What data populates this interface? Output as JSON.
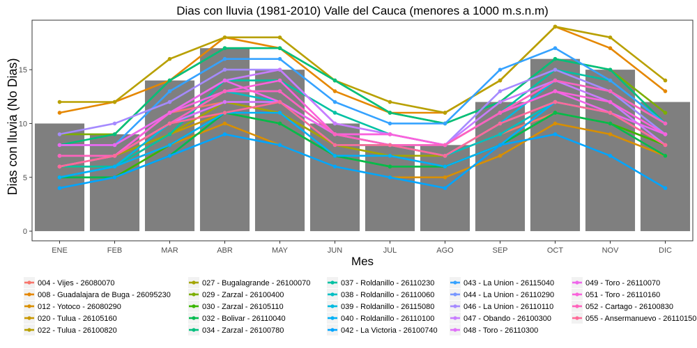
{
  "chart_data": {
    "type": "bar",
    "title": "Dias con lluvia (1981-2010) Valle del Cauca (menores a 1000 m.s.n.m)",
    "xlabel": "Mes",
    "ylabel": "Dias con lluvia (No Dias)",
    "categories": [
      "ENE",
      "FEB",
      "MAR",
      "ABR",
      "MAY",
      "JUN",
      "JUL",
      "AGO",
      "SEP",
      "OCT",
      "NOV",
      "DIC"
    ],
    "ylim": [
      -0.9,
      19.6
    ],
    "yticks": [
      0,
      5,
      10,
      15
    ],
    "grid": false,
    "bars": {
      "color": "#7f7f7f",
      "values": [
        10,
        9,
        14,
        17,
        15,
        10,
        8,
        8,
        12,
        16,
        15,
        12
      ]
    },
    "legend_position": "bottom",
    "series": [
      {
        "name": "004 - Vijes - 26080070",
        "color": "#f8766d",
        "values": [
          7,
          7,
          11,
          12,
          11,
          8,
          8,
          7,
          9,
          11,
          10,
          7
        ]
      },
      {
        "name": "008 - Guadalajara de Buga - 26095230",
        "color": "#e58700",
        "values": [
          11,
          12,
          14,
          18,
          17,
          13,
          11,
          11,
          14,
          19,
          17,
          13
        ]
      },
      {
        "name": "012 - Yotoco - 26080290",
        "color": "#d98f00",
        "values": [
          6,
          6,
          8,
          10,
          8,
          6,
          5,
          5,
          7,
          10,
          9,
          7
        ]
      },
      {
        "name": "020 - Tulua - 26105160",
        "color": "#c99800",
        "values": [
          6,
          6,
          9,
          11,
          10,
          7,
          6,
          6,
          8,
          11,
          10,
          8
        ]
      },
      {
        "name": "022 - Tulua - 26100820",
        "color": "#b8a000",
        "values": [
          12,
          12,
          16,
          18,
          18,
          14,
          12,
          11,
          14,
          19,
          18,
          14
        ]
      },
      {
        "name": "027 - Bugalagrande - 26100070",
        "color": "#a3a500",
        "values": [
          7,
          7,
          9,
          12,
          11,
          8,
          7,
          7,
          9,
          12,
          11,
          8
        ]
      },
      {
        "name": "029 - Zarzal - 26100400",
        "color": "#7cae00",
        "values": [
          9,
          9,
          14,
          17,
          17,
          14,
          11,
          10,
          12,
          16,
          15,
          11
        ]
      },
      {
        "name": "030 - Zarzal - 26105110",
        "color": "#39b600",
        "values": [
          5,
          5,
          8,
          11,
          10,
          7,
          6,
          6,
          8,
          11,
          10,
          8
        ]
      },
      {
        "name": "032 - Bolivar - 26110040",
        "color": "#00bb4e",
        "values": [
          5,
          5,
          7,
          11,
          10,
          7,
          6,
          6,
          8,
          11,
          10,
          7
        ]
      },
      {
        "name": "034 - Zarzal - 26100780",
        "color": "#00bf7d",
        "values": [
          8,
          9,
          14,
          17,
          17,
          14,
          11,
          10,
          12,
          16,
          15,
          10
        ]
      },
      {
        "name": "037 - Roldanillo - 26110230",
        "color": "#00c1a3",
        "values": [
          6,
          6,
          9,
          14,
          14,
          11,
          9,
          8,
          11,
          15,
          14,
          10
        ]
      },
      {
        "name": "038 - Roldanillo - 26110060",
        "color": "#00bfc4",
        "values": [
          7,
          7,
          10,
          13,
          12,
          8,
          8,
          7,
          9,
          12,
          11,
          9
        ]
      },
      {
        "name": "039 - Roldanillo - 26115080",
        "color": "#00bae0",
        "values": [
          5,
          6,
          10,
          12,
          12,
          9,
          8,
          7,
          10,
          14,
          13,
          9
        ]
      },
      {
        "name": "040 - Roldanillo - 26110100",
        "color": "#00b0f6",
        "values": [
          5,
          6,
          8,
          11,
          11,
          7,
          7,
          6,
          8,
          12,
          11,
          9
        ]
      },
      {
        "name": "042 - La Victoria - 26100740",
        "color": "#00a5ff",
        "values": [
          4,
          5,
          7,
          9,
          8,
          6,
          5,
          4,
          8,
          9,
          7,
          4
        ]
      },
      {
        "name": "043 - La Union - 26115040",
        "color": "#35a2ff",
        "values": [
          8,
          8,
          13,
          16,
          16,
          12,
          10,
          10,
          15,
          17,
          14,
          10
        ]
      },
      {
        "name": "044 - La Union - 26110290",
        "color": "#7997ff",
        "values": [
          8,
          8,
          11,
          13,
          13,
          9,
          8,
          8,
          11,
          14,
          13,
          10
        ]
      },
      {
        "name": "046 - La Union - 26110110",
        "color": "#a58aff",
        "values": [
          9,
          10,
          12,
          15,
          15,
          10,
          9,
          8,
          13,
          15,
          13,
          9
        ]
      },
      {
        "name": "047 - Obando - 26100300",
        "color": "#c77cff",
        "values": [
          6,
          7,
          11,
          14,
          15,
          10,
          9,
          8,
          12,
          14,
          12,
          8
        ]
      },
      {
        "name": "048 - Toro - 26110300",
        "color": "#df70f8",
        "values": [
          7,
          7,
          10,
          12,
          12,
          9,
          8,
          7,
          10,
          12,
          11,
          8
        ]
      },
      {
        "name": "049 - Toro - 26110070",
        "color": "#ef67eb",
        "values": [
          8,
          8,
          11,
          14,
          12,
          9,
          9,
          8,
          11,
          13,
          11,
          9
        ]
      },
      {
        "name": "051 - Toro - 26110160",
        "color": "#fa62db",
        "values": [
          6,
          7,
          11,
          13,
          14,
          9,
          9,
          8,
          11,
          13,
          12,
          9
        ]
      },
      {
        "name": "052 - Cartago - 26100830",
        "color": "#ff62bc",
        "values": [
          7,
          7,
          10,
          13,
          13,
          9,
          8,
          8,
          11,
          14,
          13,
          10
        ]
      },
      {
        "name": "055 - Ansermanuevo - 26110150",
        "color": "#ff6a98",
        "values": [
          6,
          7,
          10,
          11,
          12,
          8,
          8,
          7,
          10,
          12,
          11,
          8
        ]
      }
    ]
  }
}
